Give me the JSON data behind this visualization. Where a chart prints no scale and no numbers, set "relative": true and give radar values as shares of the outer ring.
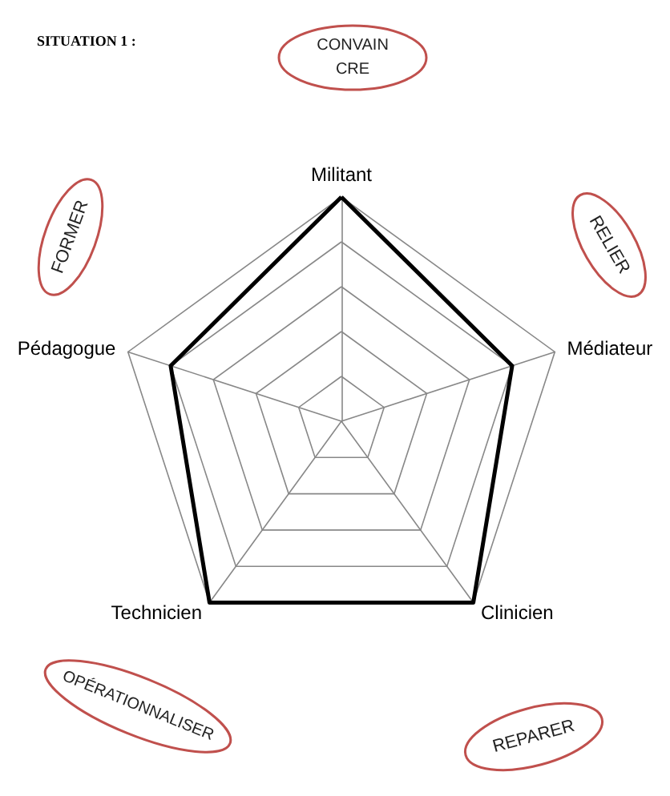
{
  "chart_data": {
    "type": "radar",
    "title": "SITUATION 1 :",
    "relative": true,
    "categories": [
      "Militant",
      "Médiateur",
      "Clinicien",
      "Technicien",
      "Pédagogue"
    ],
    "series": [
      {
        "color": "#000000",
        "values": [
          1,
          0.8,
          1,
          1,
          0.8
        ]
      }
    ],
    "annotations": [
      "CONVAIN\nCRE",
      "RELIER",
      "REPARER",
      "OPÉRATIONNALISER",
      "FORMER"
    ],
    "marker": "none",
    "line_style": "solid"
  }
}
